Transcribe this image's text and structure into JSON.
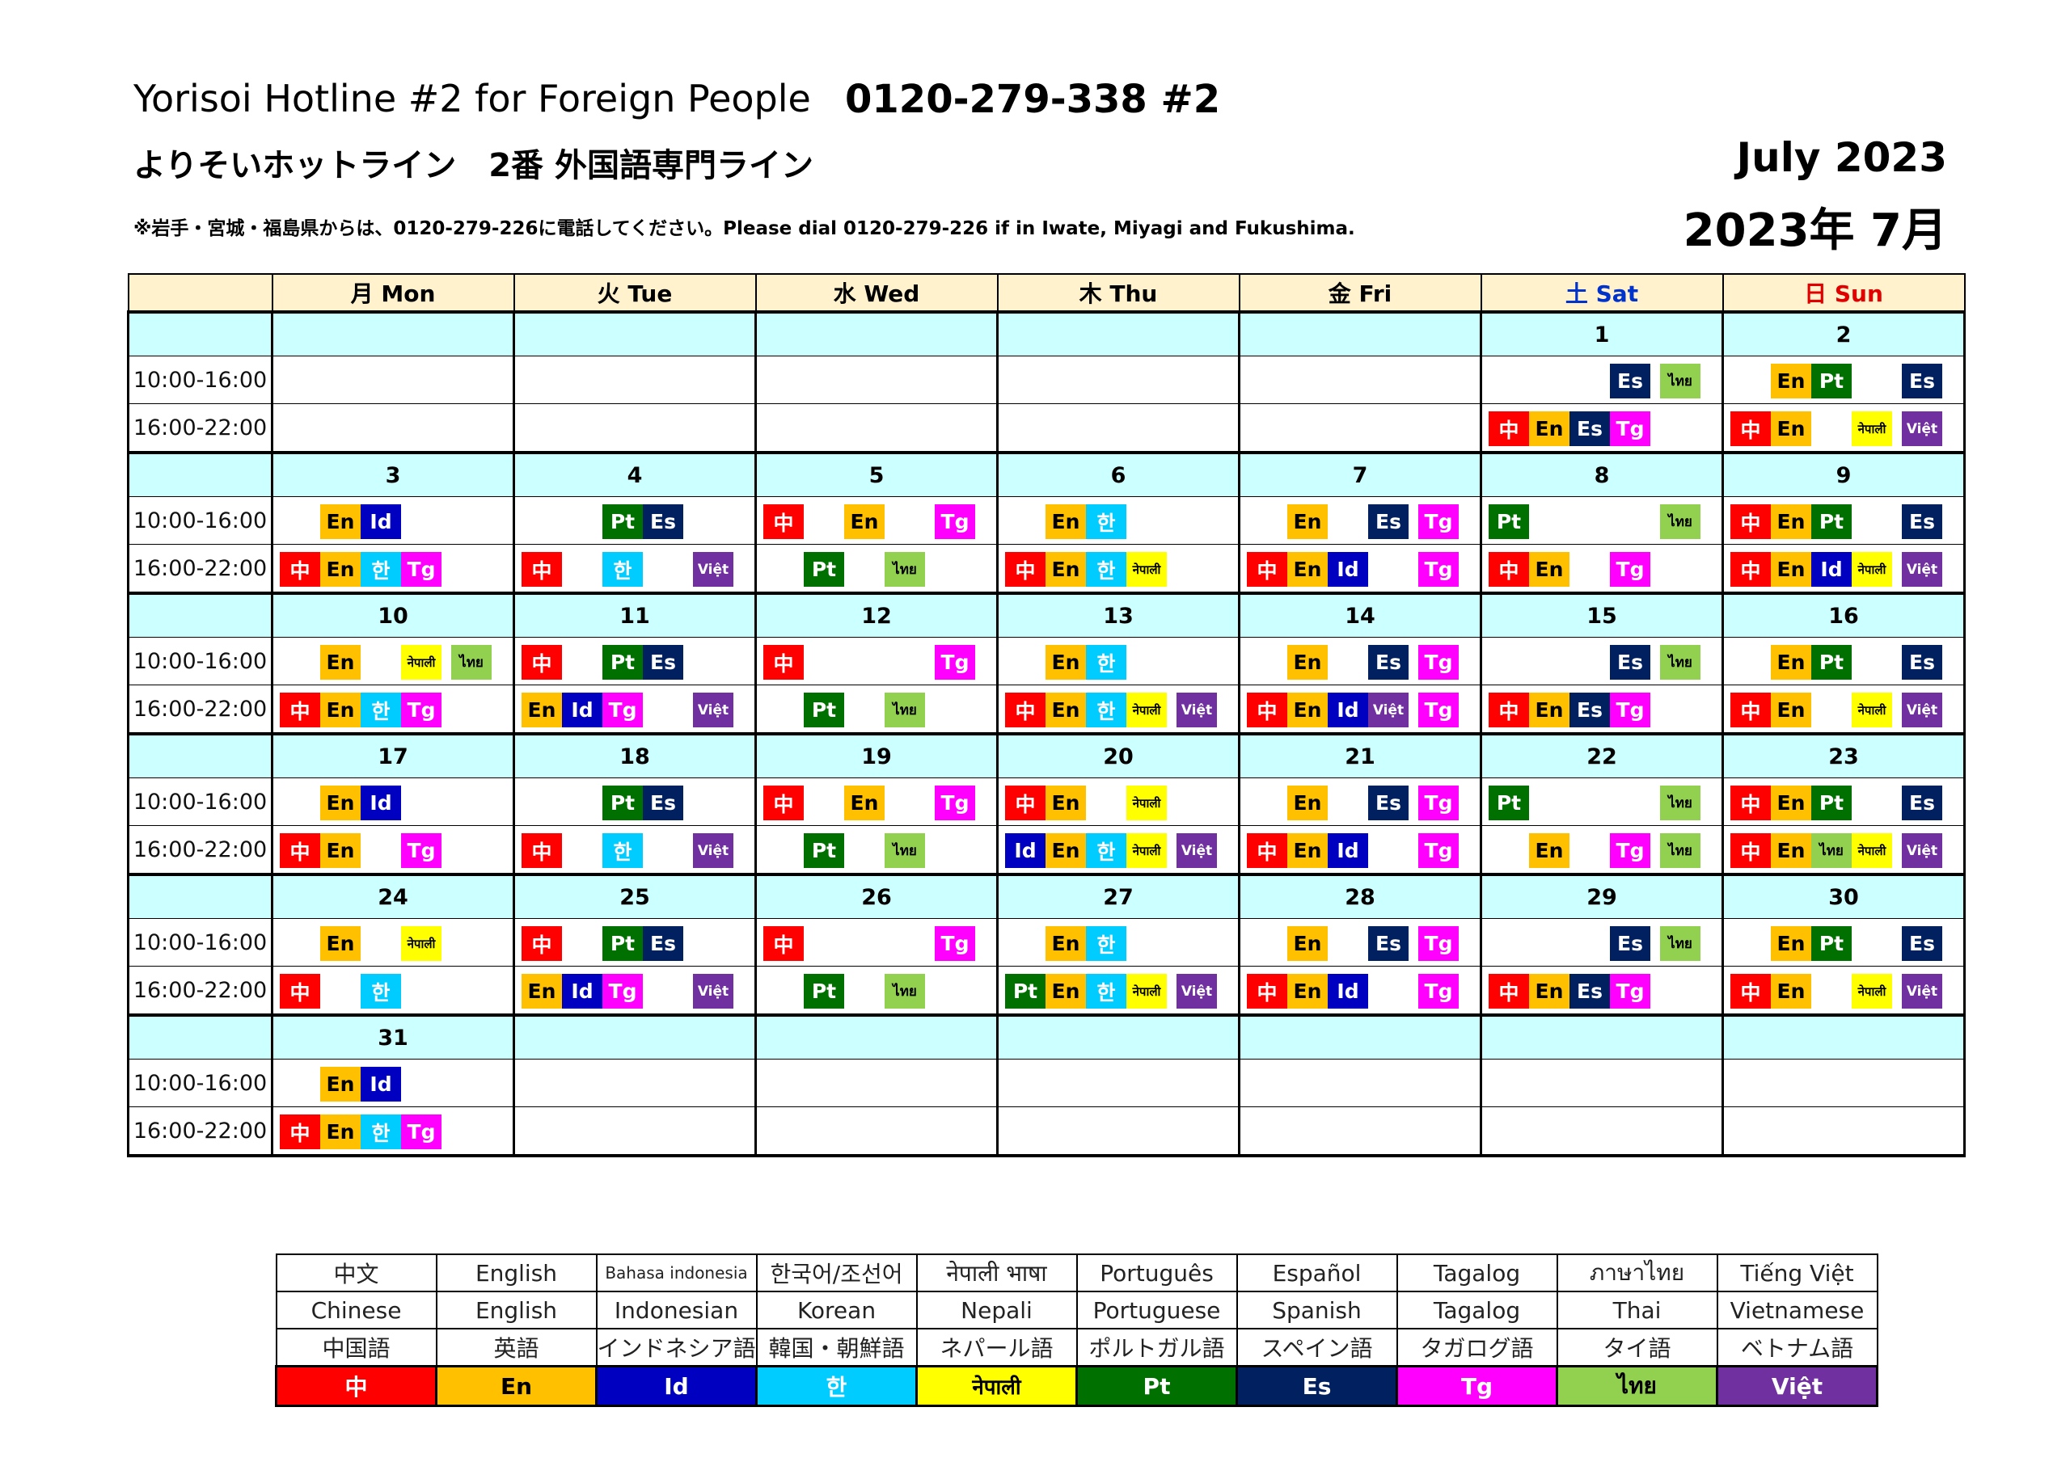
{
  "header": {
    "title_en": "Yorisoi Hotline #2 for Foreign People",
    "phone": "0120-279-338 #2",
    "title_jp": "よりそいホットライン　2番 外国語専門ライン",
    "note": "※岩手・宮城・福島県からは、0120-279-226に電話してください。Please dial 0120-279-226 if in Iwate, Miyagi and Fukushima.",
    "month_en": "July  2023",
    "month_jp": "2023年 7月"
  },
  "weekdays": [
    "月 Mon",
    "火 Tue",
    "水 Wed",
    "木 Thu",
    "金 Fri",
    "土 Sat",
    "日 Sun"
  ],
  "slots": [
    "10:00-16:00",
    "16:00-22:00"
  ],
  "languages": {
    "zh": {
      "label": "中",
      "bg": "#ff0000",
      "fg": "#ffffff"
    },
    "en": {
      "label": "En",
      "bg": "#ffc000",
      "fg": "#000000"
    },
    "id": {
      "label": "Id",
      "bg": "#0000c0",
      "fg": "#ffffff"
    },
    "ko": {
      "label": "한",
      "bg": "#00ccff",
      "fg": "#ffffff"
    },
    "ne": {
      "label": "नेपाली",
      "bg": "#ffff00",
      "fg": "#000000"
    },
    "pt": {
      "label": "Pt",
      "bg": "#007000",
      "fg": "#ffffff"
    },
    "es": {
      "label": "Es",
      "bg": "#002060",
      "fg": "#ffffff"
    },
    "tg": {
      "label": "Tg",
      "bg": "#ff00ff",
      "fg": "#ffffff"
    },
    "th": {
      "label": "ไทย",
      "bg": "#92d050",
      "fg": "#000000"
    },
    "vi": {
      "label": "Việt",
      "bg": "#7030a0",
      "fg": "#ffffff"
    }
  },
  "weeks": [
    {
      "days": [
        {
          "date": "",
          "am": [],
          "pm": []
        },
        {
          "date": "",
          "am": [],
          "pm": []
        },
        {
          "date": "",
          "am": [],
          "pm": []
        },
        {
          "date": "",
          "am": [],
          "pm": []
        },
        {
          "date": "",
          "am": [],
          "pm": []
        },
        {
          "date": "1",
          "am": [
            [
              3,
              "es"
            ],
            [
              6,
              "th"
            ]
          ],
          "pm": [
            [
              0,
              "zh"
            ],
            [
              1,
              "en"
            ],
            [
              2,
              "es"
            ],
            [
              3,
              "tg"
            ]
          ]
        },
        {
          "date": "2",
          "am": [
            [
              1,
              "en"
            ],
            [
              2,
              "pt"
            ],
            [
              4,
              "es"
            ]
          ],
          "pm": [
            [
              0,
              "zh"
            ],
            [
              1,
              "en"
            ],
            [
              3,
              "ne"
            ],
            [
              4,
              "vi"
            ]
          ]
        }
      ]
    },
    {
      "days": [
        {
          "date": "3",
          "am": [
            [
              1,
              "en"
            ],
            [
              2,
              "id"
            ]
          ],
          "pm": [
            [
              0,
              "zh"
            ],
            [
              1,
              "en"
            ],
            [
              2,
              "ko"
            ],
            [
              3,
              "tg"
            ]
          ]
        },
        {
          "date": "4",
          "am": [
            [
              2,
              "pt"
            ],
            [
              3,
              "es"
            ]
          ],
          "pm": [
            [
              0,
              "zh"
            ],
            [
              2,
              "ko"
            ],
            [
              4,
              "vi"
            ]
          ]
        },
        {
          "date": "5",
          "am": [
            [
              0,
              "zh"
            ],
            [
              2,
              "en"
            ],
            [
              4,
              "tg"
            ]
          ],
          "pm": [
            [
              1,
              "pt"
            ],
            [
              3,
              "th"
            ]
          ]
        },
        {
          "date": "6",
          "am": [
            [
              1,
              "en"
            ],
            [
              2,
              "ko"
            ]
          ],
          "pm": [
            [
              0,
              "zh"
            ],
            [
              1,
              "en"
            ],
            [
              2,
              "ko"
            ],
            [
              3,
              "ne"
            ]
          ]
        },
        {
          "date": "7",
          "am": [
            [
              1,
              "en"
            ],
            [
              3,
              "es"
            ],
            [
              4,
              "tg"
            ]
          ],
          "pm": [
            [
              0,
              "zh"
            ],
            [
              1,
              "en"
            ],
            [
              2,
              "id"
            ],
            [
              4,
              "tg"
            ]
          ]
        },
        {
          "date": "8",
          "am": [
            [
              0,
              "pt"
            ],
            [
              4,
              "th"
            ]
          ],
          "pm": [
            [
              0,
              "zh"
            ],
            [
              1,
              "en"
            ],
            [
              3,
              "tg"
            ]
          ]
        },
        {
          "date": "9",
          "am": [
            [
              0,
              "zh"
            ],
            [
              1,
              "en"
            ],
            [
              2,
              "pt"
            ],
            [
              4,
              "es"
            ]
          ],
          "pm": [
            [
              0,
              "zh"
            ],
            [
              1,
              "en"
            ],
            [
              2,
              "id"
            ],
            [
              3,
              "ne"
            ],
            [
              4,
              "vi"
            ]
          ]
        }
      ]
    },
    {
      "days": [
        {
          "date": "10",
          "am": [
            [
              1,
              "en"
            ],
            [
              3,
              "ne"
            ],
            [
              4,
              "th"
            ]
          ],
          "pm": [
            [
              0,
              "zh"
            ],
            [
              1,
              "en"
            ],
            [
              2,
              "ko"
            ],
            [
              3,
              "tg"
            ]
          ]
        },
        {
          "date": "11",
          "am": [
            [
              0,
              "zh"
            ],
            [
              2,
              "pt"
            ],
            [
              3,
              "es"
            ]
          ],
          "pm": [
            [
              0,
              "en"
            ],
            [
              1,
              "id"
            ],
            [
              2,
              "tg"
            ],
            [
              4,
              "vi"
            ]
          ]
        },
        {
          "date": "12",
          "am": [
            [
              0,
              "zh"
            ],
            [
              4,
              "tg"
            ]
          ],
          "pm": [
            [
              1,
              "pt"
            ],
            [
              3,
              "th"
            ]
          ]
        },
        {
          "date": "13",
          "am": [
            [
              1,
              "en"
            ],
            [
              2,
              "ko"
            ]
          ],
          "pm": [
            [
              0,
              "zh"
            ],
            [
              1,
              "en"
            ],
            [
              2,
              "ko"
            ],
            [
              3,
              "ne"
            ],
            [
              4,
              "vi"
            ]
          ]
        },
        {
          "date": "14",
          "am": [
            [
              1,
              "en"
            ],
            [
              3,
              "es"
            ],
            [
              4,
              "tg"
            ]
          ],
          "pm": [
            [
              0,
              "zh"
            ],
            [
              1,
              "en"
            ],
            [
              2,
              "id"
            ],
            [
              3,
              "vi"
            ],
            [
              4,
              "tg"
            ]
          ]
        },
        {
          "date": "15",
          "am": [
            [
              3,
              "es"
            ],
            [
              6,
              "th"
            ]
          ],
          "pm": [
            [
              0,
              "zh"
            ],
            [
              1,
              "en"
            ],
            [
              2,
              "es"
            ],
            [
              3,
              "tg"
            ]
          ]
        },
        {
          "date": "16",
          "am": [
            [
              1,
              "en"
            ],
            [
              2,
              "pt"
            ],
            [
              4,
              "es"
            ]
          ],
          "pm": [
            [
              0,
              "zh"
            ],
            [
              1,
              "en"
            ],
            [
              3,
              "ne"
            ],
            [
              4,
              "vi"
            ]
          ]
        }
      ]
    },
    {
      "days": [
        {
          "date": "17",
          "am": [
            [
              1,
              "en"
            ],
            [
              2,
              "id"
            ]
          ],
          "pm": [
            [
              0,
              "zh"
            ],
            [
              1,
              "en"
            ],
            [
              3,
              "tg"
            ]
          ]
        },
        {
          "date": "18",
          "am": [
            [
              2,
              "pt"
            ],
            [
              3,
              "es"
            ]
          ],
          "pm": [
            [
              0,
              "zh"
            ],
            [
              2,
              "ko"
            ],
            [
              4,
              "vi"
            ]
          ]
        },
        {
          "date": "19",
          "am": [
            [
              0,
              "zh"
            ],
            [
              2,
              "en"
            ],
            [
              4,
              "tg"
            ]
          ],
          "pm": [
            [
              1,
              "pt"
            ],
            [
              3,
              "th"
            ]
          ]
        },
        {
          "date": "20",
          "am": [
            [
              0,
              "zh"
            ],
            [
              1,
              "en"
            ],
            [
              3,
              "ne"
            ]
          ],
          "pm": [
            [
              0,
              "id"
            ],
            [
              1,
              "en"
            ],
            [
              2,
              "ko"
            ],
            [
              3,
              "ne"
            ],
            [
              4,
              "vi"
            ]
          ]
        },
        {
          "date": "21",
          "am": [
            [
              1,
              "en"
            ],
            [
              3,
              "es"
            ],
            [
              4,
              "tg"
            ]
          ],
          "pm": [
            [
              0,
              "zh"
            ],
            [
              1,
              "en"
            ],
            [
              2,
              "id"
            ],
            [
              4,
              "tg"
            ]
          ]
        },
        {
          "date": "22",
          "am": [
            [
              0,
              "pt"
            ],
            [
              4,
              "th"
            ]
          ],
          "pm": [
            [
              1,
              "en"
            ],
            [
              3,
              "tg"
            ],
            [
              4,
              "th"
            ]
          ]
        },
        {
          "date": "23",
          "am": [
            [
              0,
              "zh"
            ],
            [
              1,
              "en"
            ],
            [
              2,
              "pt"
            ],
            [
              4,
              "es"
            ]
          ],
          "pm": [
            [
              0,
              "zh"
            ],
            [
              1,
              "en"
            ],
            [
              2,
              "th"
            ],
            [
              3,
              "ne"
            ],
            [
              4,
              "vi"
            ]
          ]
        }
      ]
    },
    {
      "days": [
        {
          "date": "24",
          "am": [
            [
              1,
              "en"
            ],
            [
              3,
              "ne"
            ]
          ],
          "pm": [
            [
              0,
              "zh"
            ],
            [
              2,
              "ko"
            ]
          ]
        },
        {
          "date": "25",
          "am": [
            [
              0,
              "zh"
            ],
            [
              2,
              "pt"
            ],
            [
              3,
              "es"
            ]
          ],
          "pm": [
            [
              0,
              "en"
            ],
            [
              1,
              "id"
            ],
            [
              2,
              "tg"
            ],
            [
              4,
              "vi"
            ]
          ]
        },
        {
          "date": "26",
          "am": [
            [
              0,
              "zh"
            ],
            [
              4,
              "tg"
            ]
          ],
          "pm": [
            [
              1,
              "pt"
            ],
            [
              3,
              "th"
            ]
          ]
        },
        {
          "date": "27",
          "am": [
            [
              1,
              "en"
            ],
            [
              2,
              "ko"
            ]
          ],
          "pm": [
            [
              0,
              "pt"
            ],
            [
              1,
              "en"
            ],
            [
              2,
              "ko"
            ],
            [
              3,
              "ne"
            ],
            [
              4,
              "vi"
            ]
          ]
        },
        {
          "date": "28",
          "am": [
            [
              1,
              "en"
            ],
            [
              3,
              "es"
            ],
            [
              4,
              "tg"
            ]
          ],
          "pm": [
            [
              0,
              "zh"
            ],
            [
              1,
              "en"
            ],
            [
              2,
              "id"
            ],
            [
              4,
              "tg"
            ]
          ]
        },
        {
          "date": "29",
          "am": [
            [
              3,
              "es"
            ],
            [
              6,
              "th"
            ]
          ],
          "pm": [
            [
              0,
              "zh"
            ],
            [
              1,
              "en"
            ],
            [
              2,
              "es"
            ],
            [
              3,
              "tg"
            ]
          ]
        },
        {
          "date": "30",
          "am": [
            [
              1,
              "en"
            ],
            [
              2,
              "pt"
            ],
            [
              4,
              "es"
            ]
          ],
          "pm": [
            [
              0,
              "zh"
            ],
            [
              1,
              "en"
            ],
            [
              3,
              "ne"
            ],
            [
              4,
              "vi"
            ]
          ]
        }
      ]
    },
    {
      "days": [
        {
          "date": "31",
          "am": [
            [
              1,
              "en"
            ],
            [
              2,
              "id"
            ]
          ],
          "pm": [
            [
              0,
              "zh"
            ],
            [
              1,
              "en"
            ],
            [
              2,
              "ko"
            ],
            [
              3,
              "tg"
            ]
          ]
        },
        {
          "date": "",
          "am": [],
          "pm": []
        },
        {
          "date": "",
          "am": [],
          "pm": []
        },
        {
          "date": "",
          "am": [],
          "pm": []
        },
        {
          "date": "",
          "am": [],
          "pm": []
        },
        {
          "date": "",
          "am": [],
          "pm": []
        },
        {
          "date": "",
          "am": [],
          "pm": []
        }
      ]
    }
  ],
  "legend": {
    "native": [
      "中文",
      "English",
      "Bahasa indonesia",
      "한국어/조선어",
      "नेपाली भाषा",
      "Português",
      "Español",
      "Tagalog",
      "ภาษาไทย",
      "Tiếng Việt"
    ],
    "english": [
      "Chinese",
      "English",
      "Indonesian",
      "Korean",
      "Nepali",
      "Portuguese",
      "Spanish",
      "Tagalog",
      "Thai",
      "Vietnamese"
    ],
    "japanese": [
      "中国語",
      "英語",
      "インドネシア語",
      "韓国・朝鮮語",
      "ネパール語",
      "ポルトガル語",
      "スペイン語",
      "タガログ語",
      "タイ語",
      "ベトナム語"
    ],
    "codes": [
      "zh",
      "en",
      "id",
      "ko",
      "ne",
      "pt",
      "es",
      "tg",
      "th",
      "vi"
    ]
  }
}
